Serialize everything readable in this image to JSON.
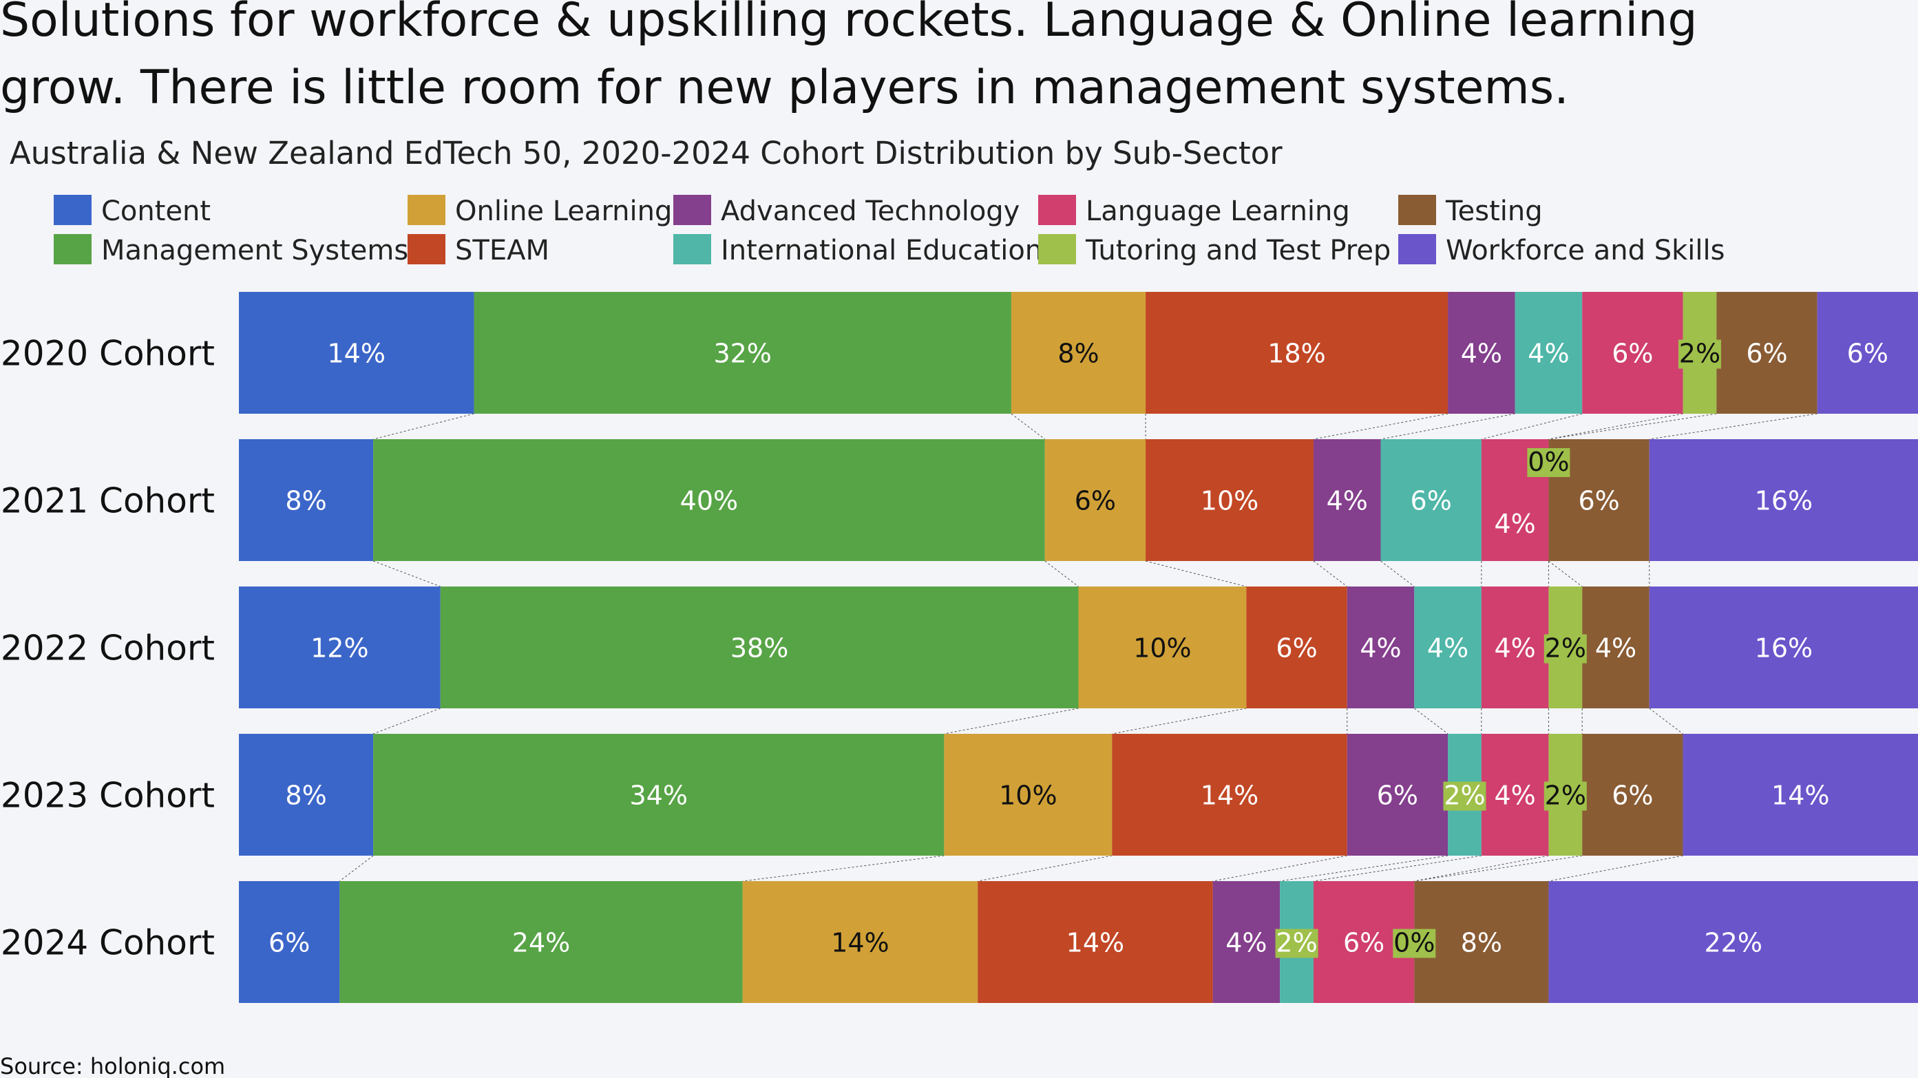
{
  "title_lines": [
    "Solutions for workforce & upskilling rockets. Language & Online learning",
    "grow.  There is little room for new players in management systems."
  ],
  "subtitle": "Australia & New Zealand EdTech 50, 2020-2024 Cohort Distribution by Sub-Sector",
  "source": "Source: holoniq.com",
  "chart_data": {
    "type": "bar",
    "orientation": "horizontal",
    "stacked": "100%",
    "title": "Solutions for workforce & upskilling rockets. Language & Online learning grow.  There is little room for new players in management systems.",
    "subtitle": "Australia & New Zealand EdTech 50, 2020-2024 Cohort Distribution by Sub-Sector",
    "categories": [
      "2020 Cohort",
      "2021 Cohort",
      "2022 Cohort",
      "2023 Cohort",
      "2024 Cohort"
    ],
    "legend_placement": "top",
    "connector_lines": true,
    "grid": false,
    "series": [
      {
        "name": "Content",
        "color": "#3b66c9",
        "label_color": "#ffffff",
        "values": [
          14,
          8,
          12,
          8,
          6
        ]
      },
      {
        "name": "Management Systems",
        "color": "#57a446",
        "label_color": "#ffffff",
        "values": [
          32,
          40,
          38,
          34,
          24
        ]
      },
      {
        "name": "Online Learning",
        "color": "#d1a137",
        "label_color": "#111111",
        "values": [
          8,
          6,
          10,
          10,
          14
        ]
      },
      {
        "name": "STEAM",
        "color": "#c24725",
        "label_color": "#ffffff",
        "values": [
          18,
          10,
          6,
          14,
          14
        ]
      },
      {
        "name": "Advanced Technology",
        "color": "#843f8d",
        "label_color": "#ffffff",
        "values": [
          4,
          4,
          4,
          6,
          4
        ]
      },
      {
        "name": "International Education",
        "color": "#4fb6a8",
        "label_color": "#ffffff",
        "values": [
          4,
          6,
          4,
          2,
          2
        ]
      },
      {
        "name": "Language Learning",
        "color": "#d03f6e",
        "label_color": "#ffffff",
        "values": [
          6,
          4,
          4,
          4,
          6
        ]
      },
      {
        "name": "Tutoring and Test Prep",
        "color": "#9fc04a",
        "label_color": "#111111",
        "values": [
          2,
          0,
          2,
          2,
          0
        ]
      },
      {
        "name": "Testing",
        "color": "#8a5c34",
        "label_color": "#ffffff",
        "values": [
          6,
          6,
          4,
          6,
          8
        ]
      },
      {
        "name": "Workforce and Skills",
        "color": "#6a55cb",
        "label_color": "#ffffff",
        "values": [
          6,
          16,
          16,
          14,
          22
        ]
      }
    ]
  }
}
